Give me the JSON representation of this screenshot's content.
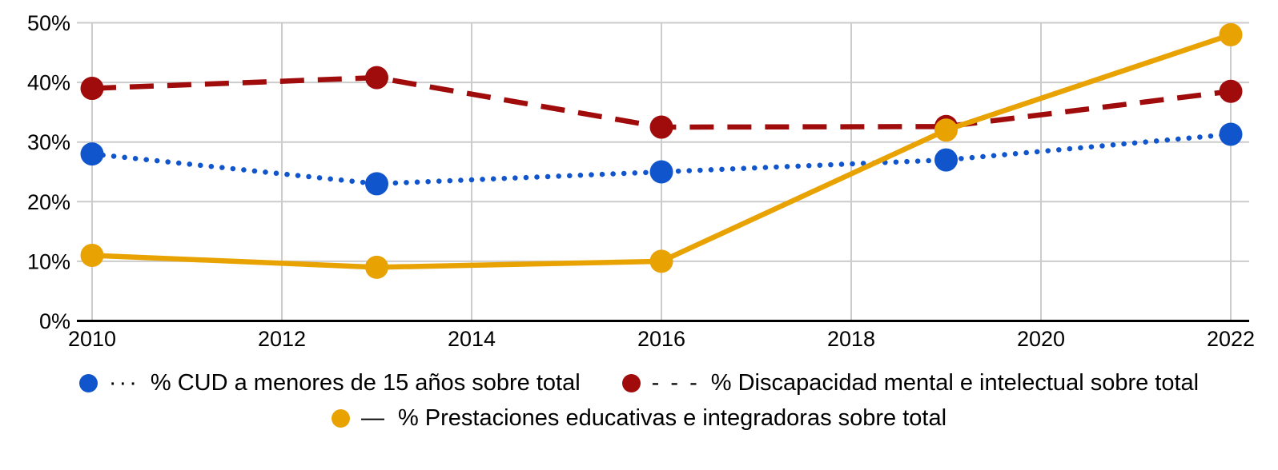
{
  "chart_data": {
    "type": "line",
    "title": "",
    "xlabel": "",
    "ylabel": "",
    "x": [
      2010,
      2013,
      2016,
      2019,
      2022
    ],
    "series": [
      {
        "name": "% CUD a menores de 15 años sobre total",
        "color": "#1155CC",
        "line_style": "dotted",
        "legend_glyph": "···",
        "values": [
          28,
          23,
          25,
          27,
          31.3
        ]
      },
      {
        "name": "% Discapacidad mental e intelectual sobre total",
        "color": "#A00C0C",
        "line_style": "dashed",
        "legend_glyph": "- - -",
        "values": [
          39,
          40.8,
          32.5,
          32.6,
          38.5
        ]
      },
      {
        "name": "% Prestaciones educativas e integradoras sobre total",
        "color": "#E8A303",
        "line_style": "solid",
        "legend_glyph": "—",
        "values": [
          11,
          9,
          10,
          32,
          48
        ]
      }
    ],
    "xlim": [
      2010,
      2022
    ],
    "ylim": [
      0,
      50
    ],
    "x_ticks": [
      {
        "value": 2010,
        "label": "2010"
      },
      {
        "value": 2012,
        "label": "2012"
      },
      {
        "value": 2014,
        "label": "2014"
      },
      {
        "value": 2016,
        "label": "2016"
      },
      {
        "value": 2018,
        "label": "2018"
      },
      {
        "value": 2020,
        "label": "2020"
      },
      {
        "value": 2022,
        "label": "2022"
      }
    ],
    "y_ticks": [
      {
        "value": 0,
        "label": "0%"
      },
      {
        "value": 10,
        "label": "10%"
      },
      {
        "value": 20,
        "label": "20%"
      },
      {
        "value": 30,
        "label": "30%"
      },
      {
        "value": 40,
        "label": "40%"
      },
      {
        "value": 50,
        "label": "50%"
      }
    ],
    "grid": true,
    "legend_position": "bottom",
    "legend_rows": [
      [
        0,
        1
      ],
      [
        2
      ]
    ],
    "colors": {
      "gridline": "#CCCCCC",
      "axis": "#000000",
      "text": "#000000",
      "background": "#FFFFFF"
    }
  }
}
